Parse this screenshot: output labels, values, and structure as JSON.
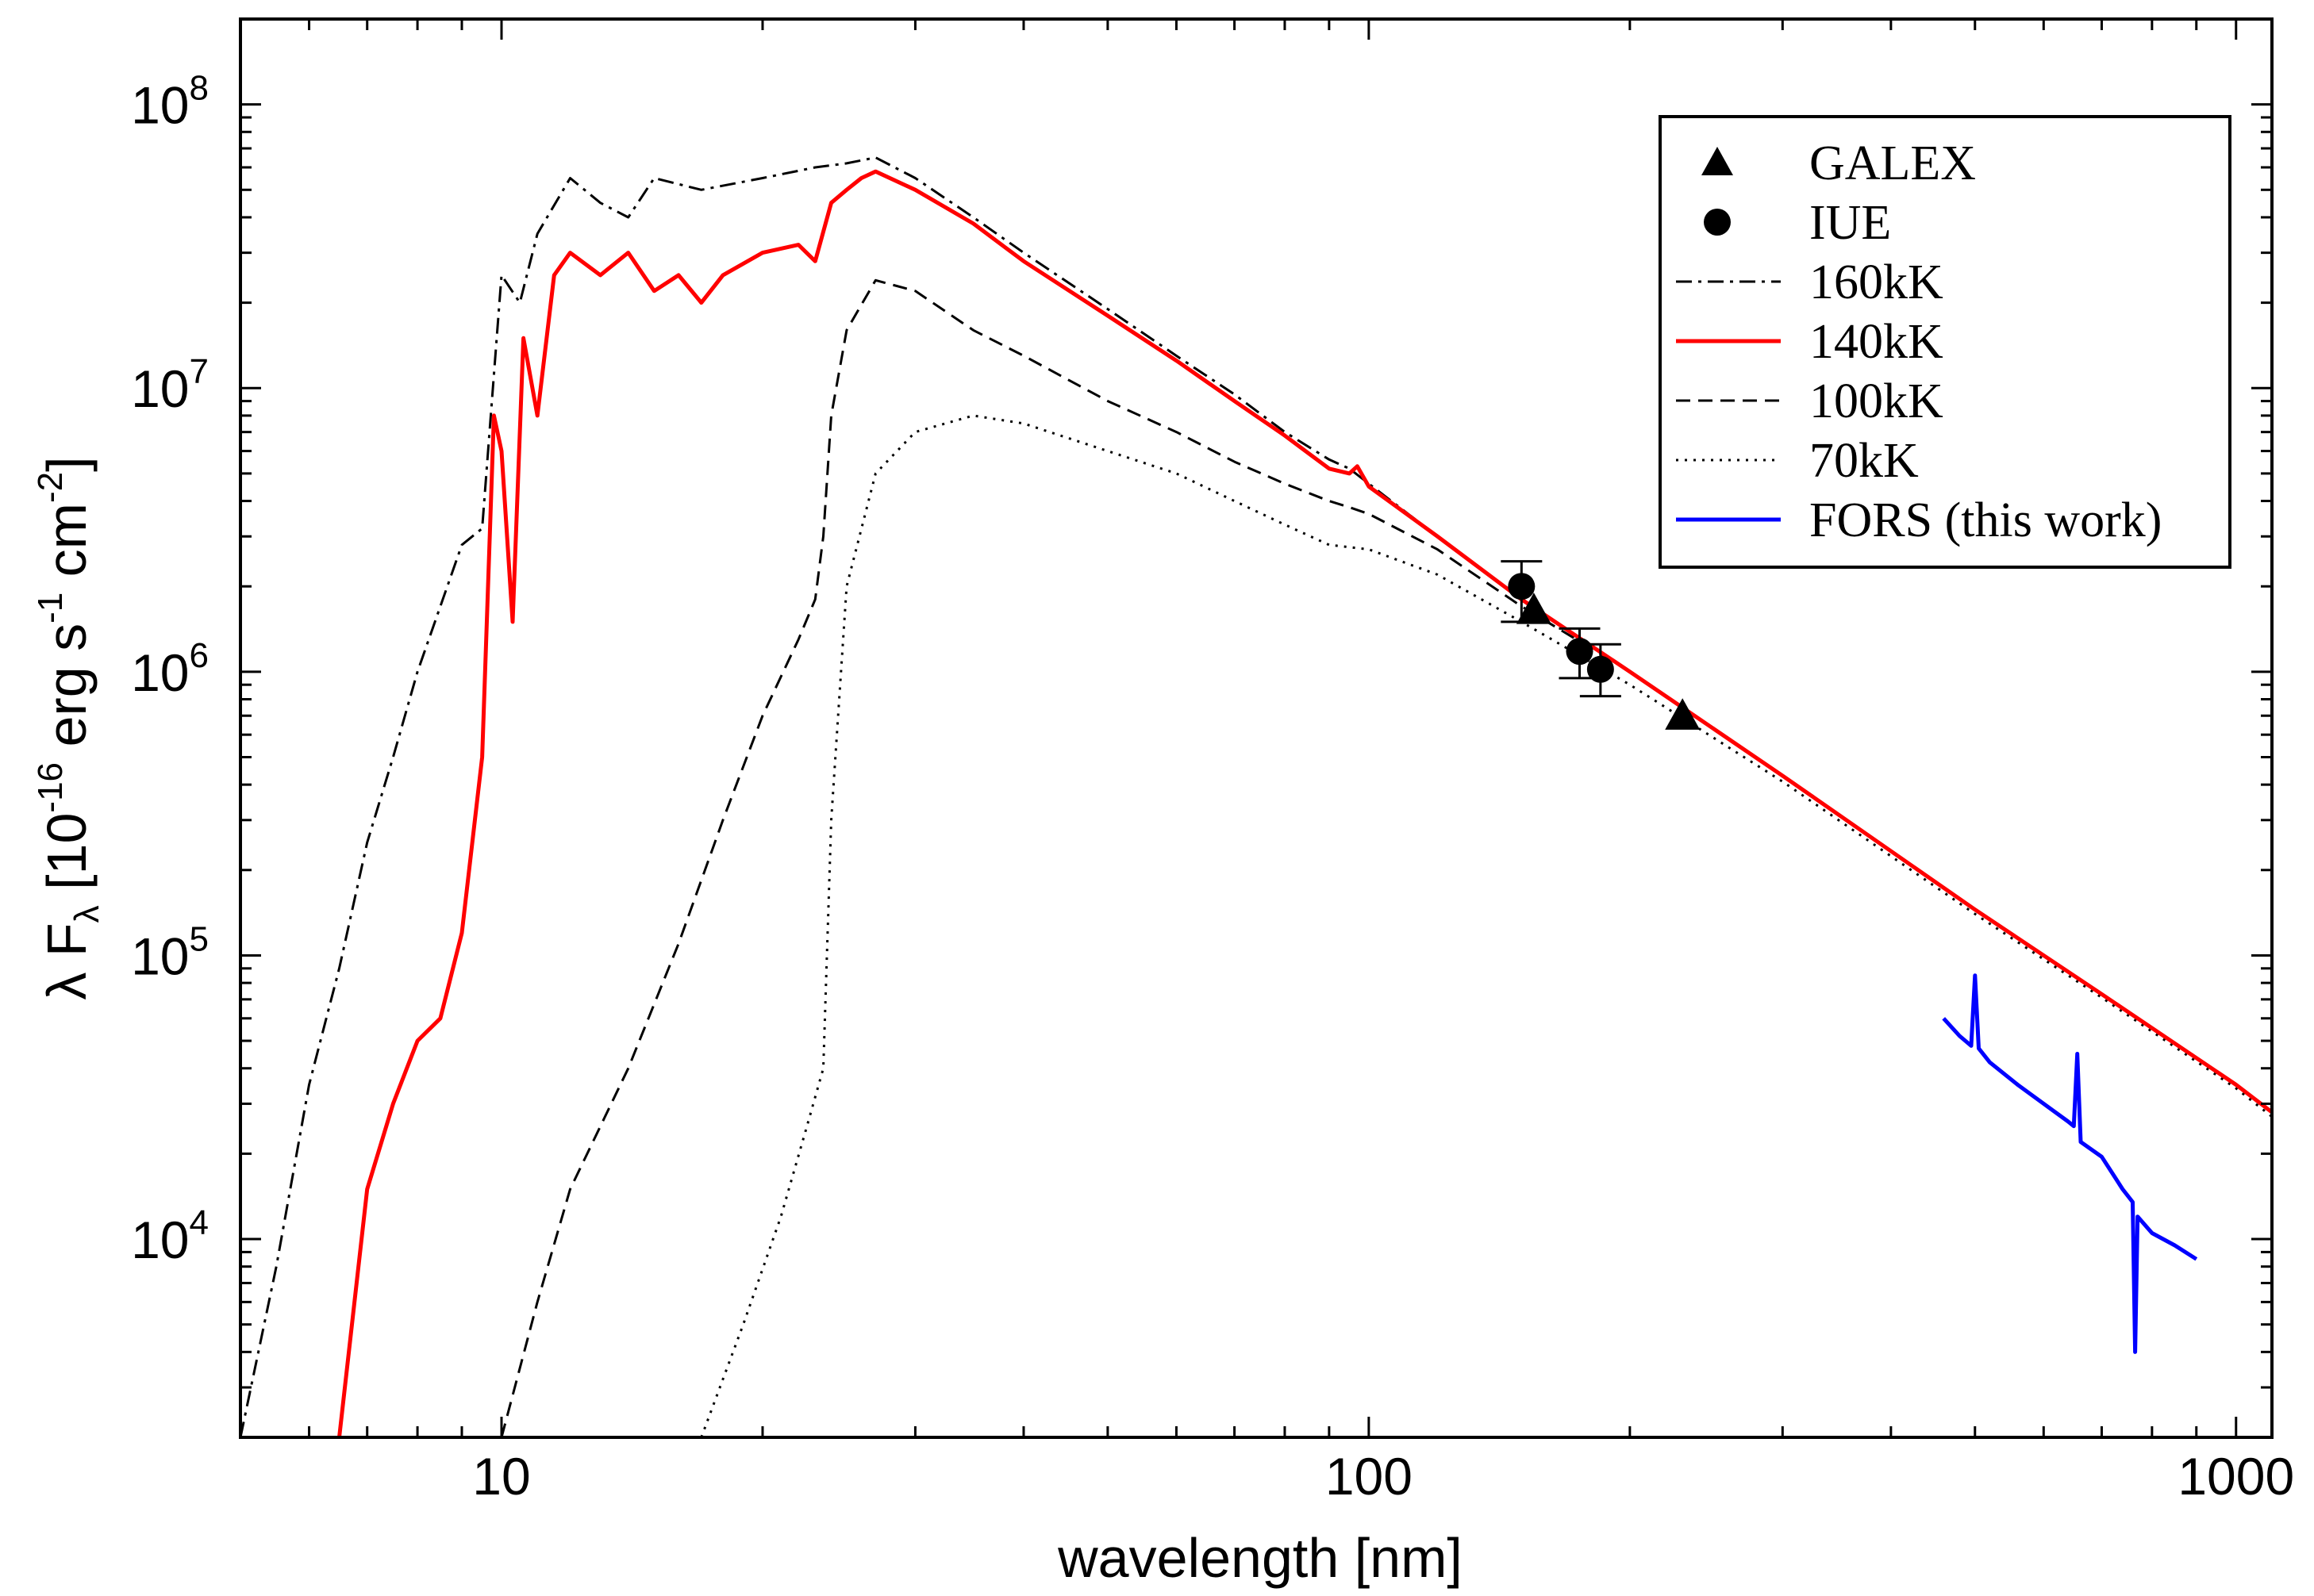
{
  "chart_data": {
    "type": "line",
    "x_scale": "log",
    "y_scale": "log",
    "xlim": [
      5,
      1100
    ],
    "ylim": [
      2000,
      200000000
    ],
    "xlabel": "wavelength [nm]",
    "ylabel": {
      "base": "λ F",
      "sub": "λ",
      "bracket_open": " [10",
      "exp": "-16",
      "erg": " erg s",
      "s_exp": "-1",
      "cm": " cm",
      "cm_exp": "-2",
      "bracket_close": "]"
    },
    "x_ticks": [
      {
        "value": 10,
        "label": "10"
      },
      {
        "value": 100,
        "label": "100"
      },
      {
        "value": 1000,
        "label": "1000"
      }
    ],
    "y_ticks": [
      {
        "value": 10000,
        "base": "10",
        "exp": "4"
      },
      {
        "value": 100000,
        "base": "10",
        "exp": "5"
      },
      {
        "value": 1000000,
        "base": "10",
        "exp": "6"
      },
      {
        "value": 10000000,
        "base": "10",
        "exp": "7"
      },
      {
        "value": 100000000,
        "base": "10",
        "exp": "8"
      }
    ],
    "grid": false,
    "legend_position": "top-right",
    "series": [
      {
        "name": "160kK",
        "style": "dashdot",
        "color": "#000000",
        "x": [
          5,
          5.5,
          6,
          6.5,
          7,
          7.5,
          8,
          8.5,
          9,
          9.5,
          10,
          10.5,
          11,
          12,
          13,
          14,
          15,
          17,
          20,
          23,
          25,
          27,
          30,
          35,
          40,
          50,
          60,
          70,
          80,
          90,
          95,
          100,
          120,
          150,
          200,
          300,
          500,
          700,
          1000,
          1100
        ],
        "y": [
          2000,
          8000,
          35000,
          90000,
          250000,
          500000,
          1000000,
          1700000,
          2800000,
          3200000,
          25000000,
          20000000,
          35000000,
          55000000,
          45000000,
          40000000,
          55000000,
          50000000,
          55000000,
          60000000,
          62000000,
          65000000,
          55000000,
          40000000,
          30000000,
          19000000,
          13000000,
          9500000,
          7000000,
          5600000,
          5200000,
          4600000,
          3000000,
          1800000,
          1000000,
          430000,
          145000,
          73000,
          35000,
          28000
        ]
      },
      {
        "name": "140kK",
        "style": "solid",
        "color": "#ff0000",
        "x": [
          6.5,
          7,
          7.5,
          8,
          8.5,
          9,
          9.5,
          9.8,
          10,
          10.3,
          10.6,
          11,
          11.5,
          12,
          13,
          14,
          15,
          16,
          17,
          18,
          20,
          22,
          23,
          24,
          25,
          26,
          27,
          30,
          35,
          40,
          50,
          60,
          70,
          80,
          90,
          95,
          97,
          100,
          120,
          150,
          200,
          300,
          500,
          700,
          1000,
          1100
        ],
        "y": [
          2000,
          15000,
          30000,
          50000,
          60000,
          120000,
          500000,
          8000000,
          6000000,
          1500000,
          15000000,
          8000000,
          25000000,
          30000000,
          25000000,
          30000000,
          22000000,
          25000000,
          20000000,
          25000000,
          30000000,
          32000000,
          28000000,
          45000000,
          50000000,
          55000000,
          58000000,
          50000000,
          38000000,
          28000000,
          18000000,
          12500000,
          9000000,
          6800000,
          5200000,
          5000000,
          5300000,
          4500000,
          3000000,
          1800000,
          1000000,
          430000,
          145000,
          73000,
          35000,
          28000
        ]
      },
      {
        "name": "100kK",
        "style": "dashed",
        "color": "#000000",
        "x": [
          10,
          11,
          12,
          14,
          16,
          18,
          20,
          22,
          23,
          23.5,
          24,
          25,
          27,
          30,
          35,
          40,
          50,
          60,
          70,
          80,
          90,
          95,
          100,
          120,
          150,
          200,
          300,
          500,
          700,
          1000,
          1100
        ],
        "y": [
          2000,
          6000,
          15000,
          40000,
          110000,
          300000,
          700000,
          1300000,
          1800000,
          3000000,
          8000000,
          16000000,
          24000000,
          22000000,
          16000000,
          13000000,
          9000000,
          7000000,
          5500000,
          4600000,
          4000000,
          3800000,
          3600000,
          2700000,
          1700000,
          1000000,
          430000,
          145000,
          73000,
          35000,
          28000
        ]
      },
      {
        "name": "70kK",
        "style": "dotted",
        "color": "#000000",
        "x": [
          17,
          19,
          21,
          22.5,
          23.5,
          24,
          25,
          27,
          30,
          35,
          40,
          50,
          60,
          70,
          80,
          90,
          100,
          120,
          150,
          200,
          300,
          500,
          700,
          1000,
          1100
        ],
        "y": [
          2000,
          5000,
          12000,
          25000,
          40000,
          300000,
          2000000,
          5000000,
          7000000,
          8000000,
          7500000,
          6000000,
          5000000,
          4000000,
          3300000,
          2800000,
          2700000,
          2200000,
          1500000,
          900000,
          410000,
          140000,
          71000,
          34000,
          27000
        ]
      },
      {
        "name": "FORS (this work)",
        "style": "solid",
        "color": "#0000ff",
        "x": [
          460,
          480,
          495,
          500,
          505,
          520,
          560,
          600,
          640,
          650,
          656,
          662,
          700,
          740,
          760,
          765,
          770,
          800,
          850,
          900
        ],
        "y": [
          60000,
          52000,
          48000,
          85000,
          47000,
          42000,
          35000,
          30000,
          26000,
          25000,
          45000,
          22000,
          19500,
          15000,
          13500,
          4000,
          12000,
          10500,
          9500,
          8500
        ]
      }
    ],
    "markers": [
      {
        "name": "GALEX",
        "shape": "triangle",
        "color": "#000000",
        "points": [
          {
            "x": 155,
            "y": 1650000
          },
          {
            "x": 230,
            "y": 700000
          }
        ]
      },
      {
        "name": "IUE",
        "shape": "circle",
        "color": "#000000",
        "points": [
          {
            "x": 150,
            "y": 2000000,
            "err": [
              1500000,
              2450000
            ]
          },
          {
            "x": 175,
            "y": 1180000,
            "err": [
              950000,
              1420000
            ]
          },
          {
            "x": 185,
            "y": 1020000,
            "err": [
              820000,
              1250000
            ]
          }
        ]
      }
    ],
    "legend": [
      {
        "label": "GALEX",
        "kind": "triangle",
        "color": "#000000"
      },
      {
        "label": "IUE",
        "kind": "circle",
        "color": "#000000"
      },
      {
        "label": "160kK",
        "kind": "dashdot",
        "color": "#000000"
      },
      {
        "label": "140kK",
        "kind": "solid",
        "color": "#ff0000"
      },
      {
        "label": "100kK",
        "kind": "dashed",
        "color": "#000000"
      },
      {
        "label": "70kK",
        "kind": "dotted",
        "color": "#000000"
      },
      {
        "label": "FORS (this work)",
        "kind": "solid",
        "color": "#0000ff"
      }
    ]
  }
}
